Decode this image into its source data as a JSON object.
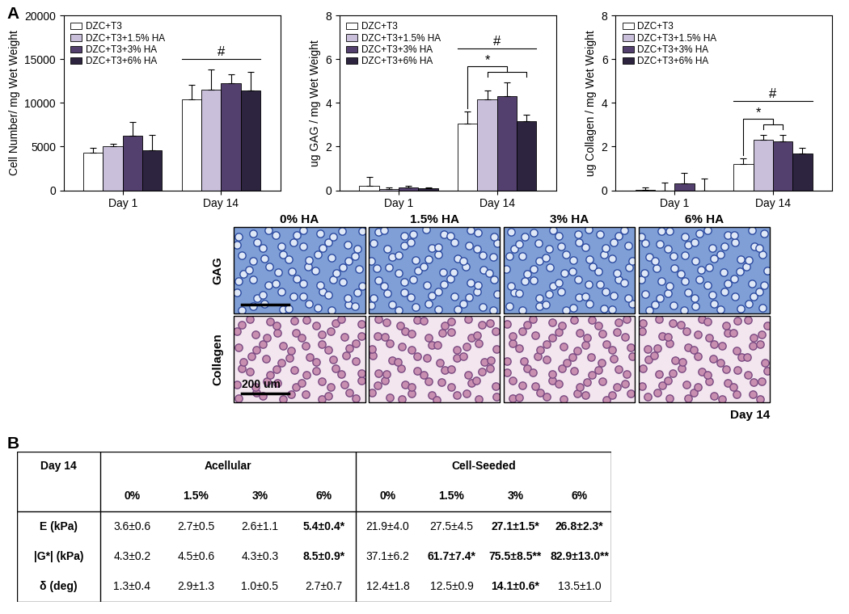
{
  "panel_labels": [
    "A",
    "B"
  ],
  "chart_data": [
    {
      "type": "bar",
      "y_label": "Cell Number/ mg Wet Weight",
      "categories": [
        "Day 1",
        "Day 14"
      ],
      "series": [
        {
          "name": "DZC+T3",
          "color": "#ffffff",
          "values": [
            4300,
            10400
          ],
          "errors": [
            600,
            1700
          ]
        },
        {
          "name": "DZC+T3+1.5% HA",
          "color": "#c9bfdb",
          "values": [
            5000,
            11500
          ],
          "errors": [
            300,
            2300
          ]
        },
        {
          "name": "DZC+T3+3% HA",
          "color": "#54406e",
          "values": [
            6200,
            12200
          ],
          "errors": [
            1600,
            1100
          ]
        },
        {
          "name": "DZC+T3+6% HA",
          "color": "#2d2440",
          "values": [
            4600,
            11400
          ],
          "errors": [
            1700,
            2100
          ]
        }
      ],
      "ylim": [
        0,
        20000
      ],
      "yticks": [
        0,
        5000,
        10000,
        15000,
        20000
      ],
      "legend": "upper left",
      "annotations": [
        {
          "text": "#",
          "category": "Day 14"
        }
      ]
    },
    {
      "type": "bar",
      "y_label": "ug GAG / mg Wet Weight",
      "categories": [
        "Day 1",
        "Day 14"
      ],
      "series": [
        {
          "name": "DZC+T3",
          "color": "#ffffff",
          "values": [
            0.2,
            3.05
          ],
          "errors": [
            0.4,
            0.55
          ]
        },
        {
          "name": "DZC+T3+1.5% HA",
          "color": "#c9bfdb",
          "values": [
            0.05,
            4.15
          ],
          "errors": [
            0.1,
            0.4
          ]
        },
        {
          "name": "DZC+T3+3% HA",
          "color": "#54406e",
          "values": [
            0.12,
            4.3
          ],
          "errors": [
            0.1,
            0.65
          ]
        },
        {
          "name": "DZC+T3+6% HA",
          "color": "#2d2440",
          "values": [
            0.08,
            3.15
          ],
          "errors": [
            0.05,
            0.3
          ]
        }
      ],
      "ylim": [
        0,
        8
      ],
      "yticks": [
        0,
        2,
        4,
        6,
        8
      ],
      "legend": "upper left",
      "annotations": [
        {
          "text": "*",
          "category": "Day 14",
          "from": "DZC+T3",
          "to": [
            "DZC+T3+1.5% HA",
            "DZC+T3+3% HA",
            "DZC+T3+6% HA"
          ]
        },
        {
          "text": "#",
          "category": "Day 14"
        }
      ]
    },
    {
      "type": "bar",
      "y_label": "ug Collagen / mg Wet Weight",
      "categories": [
        "Day 1",
        "Day 14"
      ],
      "series": [
        {
          "name": "DZC+T3",
          "color": "#ffffff",
          "values": [
            0.02,
            1.2
          ],
          "errors": [
            0.1,
            0.25
          ]
        },
        {
          "name": "DZC+T3+1.5% HA",
          "color": "#c9bfdb",
          "values": [
            0.0,
            2.3
          ],
          "errors": [
            0.35,
            0.25
          ]
        },
        {
          "name": "DZC+T3+3% HA",
          "color": "#54406e",
          "values": [
            0.3,
            2.25
          ],
          "errors": [
            0.5,
            0.3
          ]
        },
        {
          "name": "DZC+T3+6% HA",
          "color": "#2d2440",
          "values": [
            0.0,
            1.7
          ],
          "errors": [
            0.55,
            0.25
          ]
        }
      ],
      "ylim": [
        0,
        8
      ],
      "yticks": [
        0,
        2,
        4,
        6,
        8
      ],
      "legend": "upper left",
      "annotations": [
        {
          "text": "*",
          "category": "Day 14",
          "from": "DZC+T3",
          "to": [
            "DZC+T3+1.5% HA",
            "DZC+T3+3% HA"
          ]
        },
        {
          "text": "#",
          "category": "Day 14"
        }
      ]
    }
  ],
  "micrographs": {
    "columns": [
      "0% HA",
      "1.5% HA",
      "3% HA",
      "6% HA"
    ],
    "rows": [
      "GAG",
      "Collagen"
    ],
    "scale_bar": "200 um",
    "caption": "Day 14"
  },
  "table": {
    "corner": "Day 14",
    "groups": [
      "Acellular",
      "Cell-Seeded"
    ],
    "columns": [
      "0%",
      "1.5%",
      "3%",
      "6%"
    ],
    "rows": [
      {
        "label": "E (kPa)",
        "cells": [
          "3.6±0.6",
          "2.7±0.5",
          "2.6±1.1",
          "5.4±0.4*",
          "21.9±4.0",
          "27.5±4.5",
          "27.1±1.5*",
          "26.8±2.3*"
        ]
      },
      {
        "label": "|G*| (kPa)",
        "cells": [
          "4.3±0.2",
          "4.5±0.6",
          "4.3±0.3",
          "8.5±0.9*",
          "37.1±6.2",
          "61.7±7.4*",
          "75.5±8.5**",
          "82.9±13.0**"
        ]
      },
      {
        "label": "δ (deg)",
        "cells": [
          "1.3±0.4",
          "2.9±1.3",
          "1.0±0.5",
          "2.7±0.7",
          "12.4±1.8",
          "12.5±0.9",
          "14.1±0.6*",
          "13.5±1.0"
        ]
      }
    ]
  }
}
